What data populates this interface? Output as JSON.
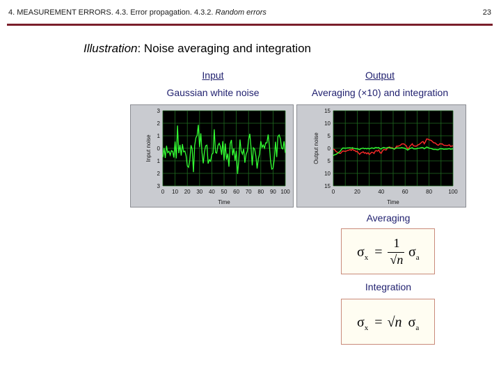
{
  "header": {
    "breadcrumb_plain": "4. MEASUREMENT ERRORS. 4.3. Error propagation. 4.3.2. ",
    "breadcrumb_italic": "Random errors",
    "page_number": "23"
  },
  "title": {
    "prefix": "Illustration",
    "text": ":  Noise averaging and integration"
  },
  "input": {
    "label": "Input",
    "subtitle": "Gaussian white noise"
  },
  "output": {
    "label": "Output",
    "subtitle": "Averaging (×10) and integration"
  },
  "input_plot": {
    "ylabel": "Input noise",
    "xlabel": "Time",
    "yticks": [
      "3",
      "2",
      "1",
      "0",
      "1",
      "2",
      "3"
    ],
    "xticks": [
      "0",
      "10",
      "20",
      "30",
      "40",
      "50",
      "60",
      "70",
      "80",
      "90",
      "100"
    ]
  },
  "output_plot": {
    "ylabel": "Output noise",
    "xlabel": "Time",
    "yticks": [
      "15",
      "10",
      "5",
      "0",
      "5",
      "10",
      "15"
    ],
    "xticks": [
      "0",
      "20",
      "40",
      "60",
      "80",
      "100"
    ]
  },
  "averaging": {
    "label": "Averaging",
    "lhs": "σ",
    "lhs_sub": "x",
    "equals": "=",
    "numerator": "1",
    "denominator": "√n",
    "rhs": "σ",
    "rhs_sub": "a"
  },
  "integration": {
    "label": "Integration",
    "lhs": "σ",
    "lhs_sub": "x",
    "equals": "=",
    "root": "√n",
    "rhs": "σ",
    "rhs_sub": "a"
  },
  "colors": {
    "accent_rule": "#7a1f2b",
    "trace_green": "#33ff33",
    "trace_red": "#ff2a2a",
    "grid": "#1f6b1f"
  }
}
